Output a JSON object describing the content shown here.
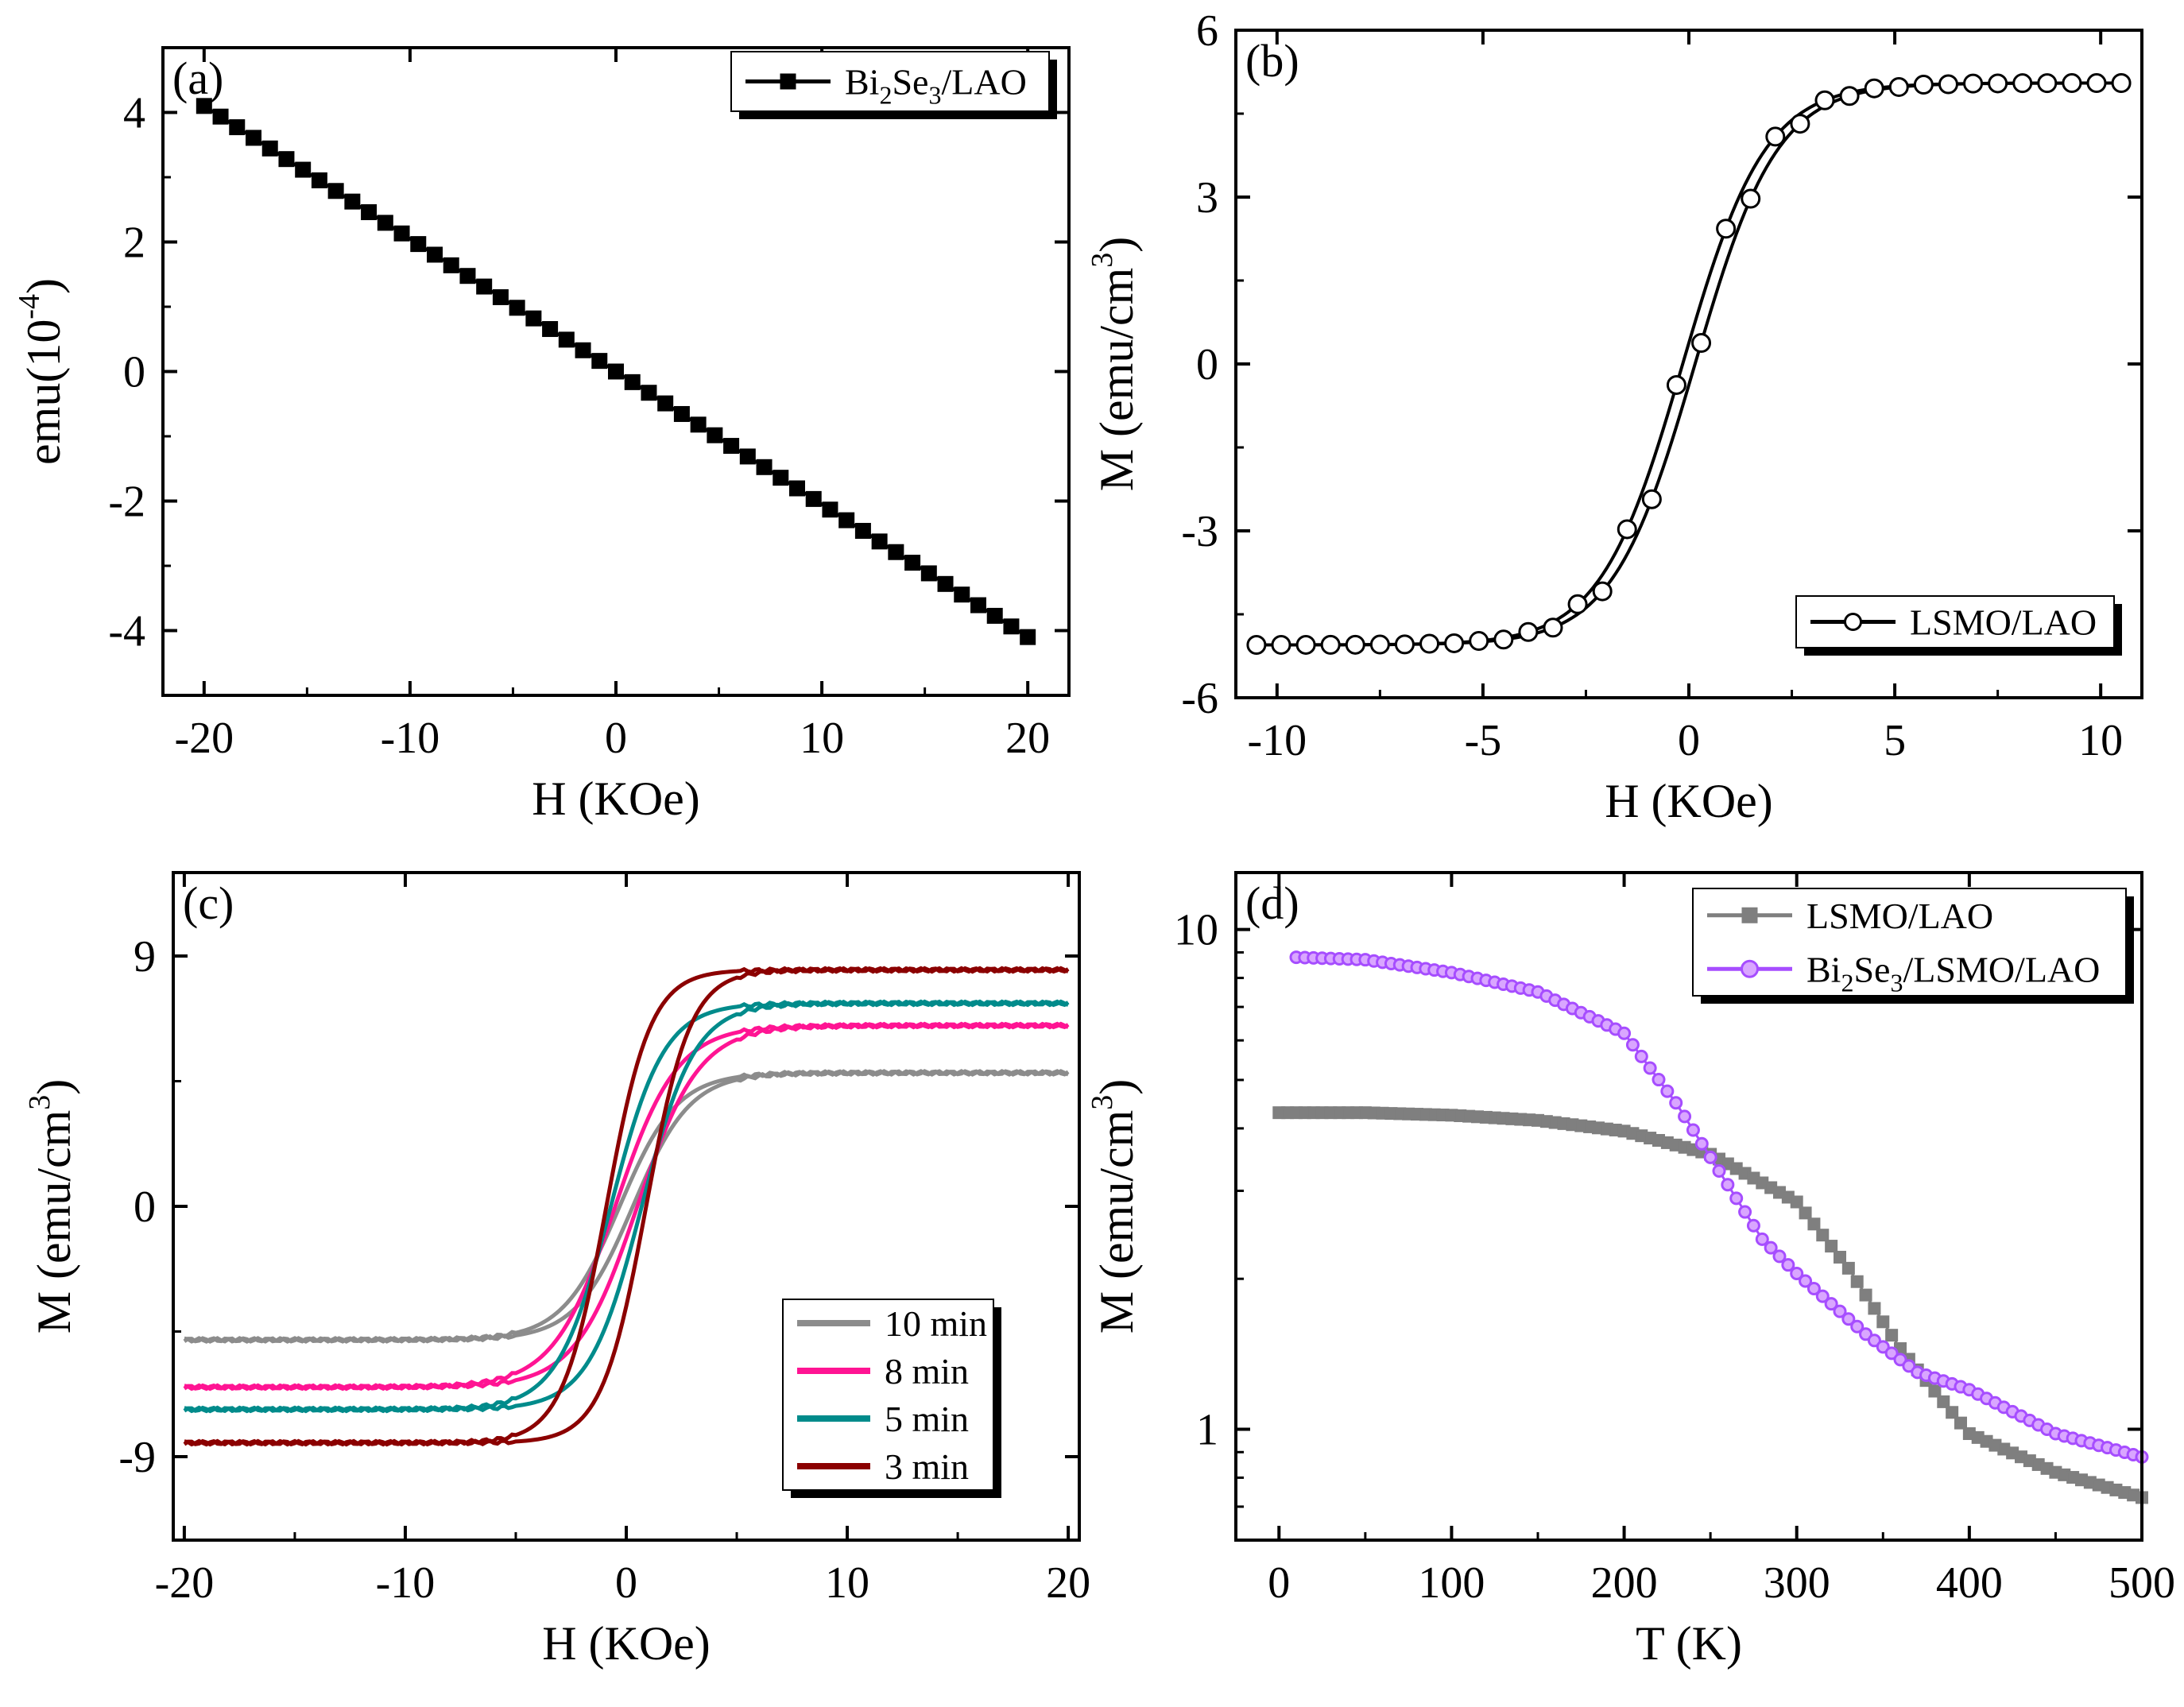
{
  "figure": {
    "panels": [
      "a",
      "b",
      "c",
      "d"
    ]
  },
  "chart_data": [
    {
      "id": "a",
      "type": "scatter",
      "letter": "(a)",
      "xlabel": "H (KOe)",
      "ylabel": "emu(10",
      "ylabel_sup": "-4",
      "ylabel_end": ")",
      "xlim": [
        -22,
        22
      ],
      "ylim": [
        -5,
        5
      ],
      "xticks": [
        -20,
        -10,
        0,
        10,
        20
      ],
      "yticks": [
        -4,
        -2,
        0,
        2,
        4
      ],
      "xtick_labels": [
        "-20",
        "-10",
        "0",
        "10",
        "20"
      ],
      "ytick_labels": [
        "-4",
        "-2",
        "0",
        "2",
        "4"
      ],
      "legend": {
        "position": "top-right",
        "entries": [
          {
            "label": "Bi",
            "sub1": "2",
            "mid": "Se",
            "sub2": "3",
            "tail": "/LAO",
            "color": "#000000",
            "marker": "square"
          }
        ]
      },
      "series": [
        {
          "name": "Bi2Se3/LAO",
          "color": "#000000",
          "marker": "square",
          "fill": "#000000",
          "line": true,
          "x_start": -20,
          "x_end": 20,
          "count": 51,
          "y_start": 4.1,
          "y_end": -4.1,
          "form": "linear"
        }
      ]
    },
    {
      "id": "b",
      "type": "scatter",
      "letter": "(b)",
      "xlabel": "H (KOe)",
      "ylabel": "M (emu/cm",
      "ylabel_sup": "3",
      "ylabel_end": ")",
      "xlim": [
        -11,
        11
      ],
      "ylim": [
        -6,
        6
      ],
      "xticks": [
        -10,
        -5,
        0,
        5,
        10
      ],
      "yticks": [
        -6,
        -3,
        0,
        3,
        6
      ],
      "xtick_labels": [
        "-10",
        "-5",
        "0",
        "5",
        "10"
      ],
      "ytick_labels": [
        "-6",
        "-3",
        "0",
        "3",
        "6"
      ],
      "legend": {
        "position": "bottom-right",
        "entries": [
          {
            "label": "LSMO/LAO",
            "color": "#000000",
            "marker": "circle"
          }
        ]
      },
      "series": [
        {
          "name": "LSMO/LAO",
          "color": "#000000",
          "marker": "circle",
          "fill": "#ffffff",
          "line": true,
          "form": "hysteresis",
          "Ms": 5.05,
          "H0": 2.0,
          "Hc": 0.15,
          "x_start": -10.5,
          "x_end": 10.5,
          "count": 36
        }
      ]
    },
    {
      "id": "c",
      "type": "line",
      "letter": "(c)",
      "xlabel": "H (KOe)",
      "ylabel": "M (emu/cm",
      "ylabel_sup": "3",
      "ylabel_end": ")",
      "xlim": [
        -20.5,
        20.5
      ],
      "ylim": [
        -12,
        12
      ],
      "xticks": [
        -20,
        -10,
        0,
        10,
        20
      ],
      "yticks": [
        -9,
        0,
        9
      ],
      "xtick_labels": [
        "-20",
        "-10",
        "0",
        "10",
        "20"
      ],
      "ytick_labels": [
        "-9",
        "0",
        "9"
      ],
      "legend": {
        "position": "bottom-right",
        "entries": [
          {
            "label": "10 min",
            "color": "#8c8c8c"
          },
          {
            "label": "8 min",
            "color": "#ff1493"
          },
          {
            "label": "5 min",
            "color": "#008b8b"
          },
          {
            "label": "3 min",
            "color": "#8b0000"
          }
        ]
      },
      "series": [
        {
          "name": "10 min",
          "color": "#8c8c8c",
          "Ms": 4.8,
          "H0": 2.6,
          "Hc": 0.3
        },
        {
          "name": "8 min",
          "color": "#ff1493",
          "Ms": 6.5,
          "H0": 2.8,
          "Hc": 0.5
        },
        {
          "name": "5 min",
          "color": "#008b8b",
          "Ms": 7.3,
          "H0": 2.4,
          "Hc": 0.7
        },
        {
          "name": "3 min",
          "color": "#8b0000",
          "Ms": 8.5,
          "H0": 2.0,
          "Hc": 0.9
        }
      ]
    },
    {
      "id": "d",
      "type": "scatter",
      "letter": "(d)",
      "xlabel": "T (K)",
      "ylabel": "M (emu/cm",
      "ylabel_sup": "3",
      "ylabel_end": ")",
      "xlim": [
        -25,
        500
      ],
      "ylim": [
        0.6,
        13
      ],
      "yscale": "log",
      "xticks": [
        0,
        100,
        200,
        300,
        400,
        500
      ],
      "yticks": [
        1,
        10
      ],
      "xtick_labels": [
        "0",
        "100",
        "200",
        "300",
        "400",
        "500"
      ],
      "ytick_labels": [
        "1",
        "10"
      ],
      "legend": {
        "position": "top-right",
        "entries": [
          {
            "label": "LSMO/LAO",
            "color": "#7f7f7f",
            "marker": "square"
          },
          {
            "label": "Bi",
            "sub1": "2",
            "mid": "Se",
            "sub2": "3",
            "tail": "/LSMO/LAO",
            "color": "#a64dff",
            "marker": "circle"
          }
        ]
      },
      "series": [
        {
          "name": "LSMO/LAO",
          "color": "#7f7f7f",
          "marker": "square",
          "fill": "#7f7f7f",
          "points": [
            [
              0,
              4.3
            ],
            [
              50,
              4.3
            ],
            [
              100,
              4.25
            ],
            [
              150,
              4.15
            ],
            [
              200,
              3.95
            ],
            [
              250,
              3.55
            ],
            [
              300,
              2.85
            ],
            [
              330,
              2.1
            ],
            [
              360,
              1.45
            ],
            [
              400,
              0.98
            ],
            [
              450,
              0.82
            ],
            [
              500,
              0.73
            ]
          ]
        },
        {
          "name": "Bi2Se3/LSMO/LAO",
          "color": "#a64dff",
          "marker": "circle",
          "fill": "#d9a6ff",
          "points": [
            [
              10,
              8.8
            ],
            [
              50,
              8.7
            ],
            [
              100,
              8.2
            ],
            [
              150,
              7.5
            ],
            [
              200,
              6.2
            ],
            [
              230,
              4.5
            ],
            [
              250,
              3.5
            ],
            [
              280,
              2.4
            ],
            [
              300,
              2.05
            ],
            [
              340,
              1.55
            ],
            [
              370,
              1.3
            ],
            [
              400,
              1.2
            ],
            [
              450,
              0.98
            ],
            [
              500,
              0.88
            ]
          ]
        }
      ]
    }
  ]
}
